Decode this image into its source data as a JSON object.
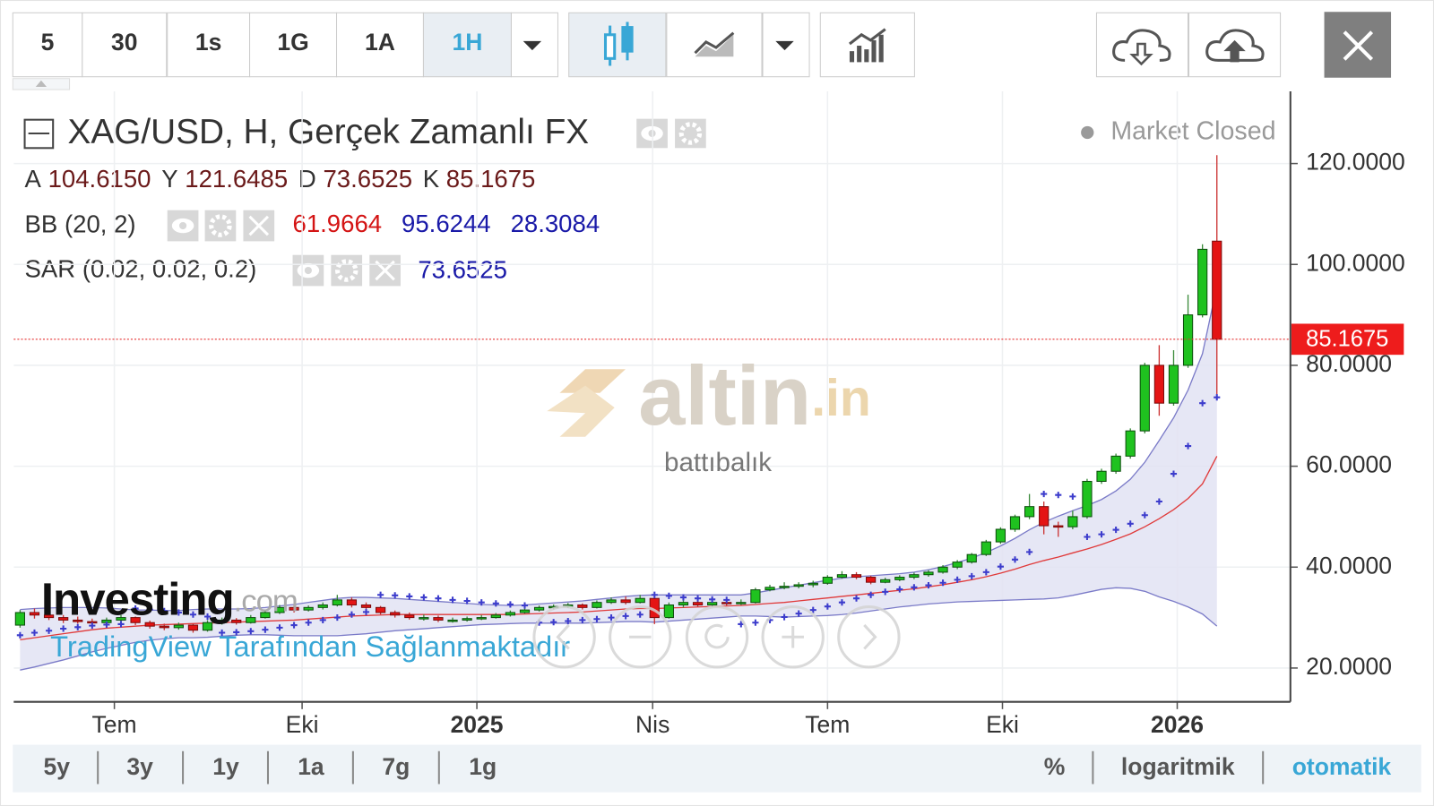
{
  "toolbar": {
    "intervals": [
      "5",
      "30",
      "1s",
      "1G",
      "1A",
      "1H"
    ]
  },
  "footer": {
    "ranges": [
      "5y",
      "3y",
      "1y",
      "1a",
      "7g",
      "1g"
    ],
    "scales": [
      "%",
      "logaritmik",
      "otomatik"
    ]
  },
  "watermark": {
    "logo": "altin",
    "logo_suffix": ".in",
    "caption": "battıbalık"
  },
  "branding": {
    "name": "Investing",
    "suffix": ".com",
    "provider": "TradingView Tarafından Sağlanmaktadır"
  },
  "chart_data": {
    "type": "candlestick",
    "title": "XAG/USD, H, Gerçek Zamanlı FX",
    "status": "Market Closed",
    "ohlc_legend": [
      {
        "label": "A",
        "value": "104.6150"
      },
      {
        "label": "Y",
        "value": "121.6485"
      },
      {
        "label": "D",
        "value": "73.6525"
      },
      {
        "label": "K",
        "value": "85.1675"
      }
    ],
    "up_color": "#1fc21f",
    "down_color": "#e41414",
    "open": [
      28.5,
      31.0,
      30.5,
      30.0,
      29.5,
      29.2,
      29.0,
      29.5,
      30.0,
      29.0,
      28.3,
      28.0,
      28.5,
      27.5,
      29.0,
      29.5,
      29.0,
      30.0,
      31.0,
      32.0,
      31.5,
      32.0,
      32.5,
      33.5,
      32.5,
      32.0,
      31.0,
      30.5,
      29.9,
      30.0,
      29.4,
      29.5,
      29.8,
      30.0,
      30.5,
      31.0,
      31.5,
      32.0,
      32.2,
      32.5,
      32.0,
      33.0,
      33.5,
      33.0,
      33.8,
      30.0,
      32.5,
      33.0,
      32.5,
      33.0,
      32.8,
      33.0,
      35.5,
      36.0,
      36.2,
      36.5,
      36.8,
      38.0,
      38.5,
      38.0,
      37.0,
      37.5,
      38.0,
      38.5,
      39.0,
      40.0,
      41.0,
      42.5,
      45.0,
      47.5,
      50.0,
      52.0,
      48.2,
      48.0,
      50.0,
      57.0,
      59.0,
      62.0,
      67.0,
      80.0,
      72.5,
      80.0,
      90.0,
      104.615
    ],
    "high": [
      31.5,
      31.8,
      31.0,
      30.5,
      30.2,
      29.8,
      30.0,
      30.5,
      30.2,
      29.4,
      28.8,
      29.0,
      28.8,
      29.5,
      30.0,
      29.9,
      30.5,
      31.4,
      32.5,
      32.6,
      32.4,
      33.0,
      34.5,
      34.0,
      33.0,
      32.3,
      31.4,
      31.0,
      30.6,
      30.4,
      30.0,
      30.2,
      30.5,
      30.9,
      31.4,
      31.9,
      32.4,
      32.6,
      32.9,
      32.8,
      33.4,
      34.0,
      34.2,
      34.5,
      34.2,
      33.0,
      33.5,
      33.6,
      33.4,
      33.6,
      33.6,
      35.9,
      36.5,
      37.0,
      37.0,
      37.3,
      38.4,
      39.2,
      39.0,
      38.3,
      37.9,
      38.4,
      38.9,
      39.4,
      40.4,
      41.4,
      42.8,
      45.4,
      47.9,
      50.4,
      54.5,
      53.0,
      49.0,
      51.2,
      57.5,
      59.5,
      62.5,
      67.5,
      80.5,
      84.0,
      83.0,
      94.0,
      104.0,
      121.6485
    ],
    "low": [
      28.0,
      29.8,
      29.5,
      28.9,
      28.8,
      28.5,
      28.7,
      29.0,
      28.5,
      27.8,
      27.5,
      27.6,
      27.0,
      27.2,
      28.6,
      28.6,
      28.8,
      29.8,
      30.7,
      31.0,
      31.2,
      31.6,
      32.2,
      32.0,
      31.5,
      30.6,
      30.0,
      29.6,
      29.4,
      29.1,
      29.0,
      29.2,
      29.5,
      29.8,
      30.2,
      30.8,
      31.2,
      31.6,
      31.9,
      31.6,
      31.8,
      32.7,
      32.6,
      32.8,
      28.7,
      29.8,
      32.0,
      32.1,
      32.2,
      32.4,
      32.5,
      32.8,
      35.2,
      35.6,
      35.8,
      36.0,
      36.5,
      37.7,
      37.6,
      36.6,
      36.8,
      37.2,
      37.6,
      38.1,
      38.7,
      39.6,
      40.7,
      42.2,
      44.6,
      47.0,
      49.5,
      46.5,
      46.0,
      47.5,
      49.6,
      56.5,
      58.5,
      61.5,
      66.5,
      70.0,
      72.0,
      79.5,
      89.5,
      73.6525
    ],
    "close": [
      31.0,
      30.5,
      30.0,
      29.5,
      29.2,
      29.0,
      29.5,
      30.0,
      29.0,
      28.3,
      28.0,
      28.5,
      27.5,
      29.0,
      29.5,
      29.0,
      30.0,
      31.0,
      32.0,
      31.5,
      32.0,
      32.5,
      33.5,
      32.5,
      32.0,
      31.0,
      30.5,
      30.0,
      30.0,
      29.5,
      29.5,
      29.8,
      30.0,
      30.5,
      31.0,
      31.5,
      32.0,
      32.2,
      32.5,
      32.0,
      33.0,
      33.5,
      33.0,
      33.8,
      30.0,
      32.5,
      33.0,
      32.5,
      33.0,
      32.8,
      33.0,
      35.5,
      36.0,
      36.2,
      36.5,
      36.8,
      38.0,
      38.5,
      38.0,
      37.0,
      37.5,
      38.0,
      38.5,
      39.0,
      40.0,
      41.0,
      42.5,
      45.0,
      47.5,
      50.0,
      52.0,
      48.2,
      48.0,
      50.0,
      57.0,
      59.0,
      62.0,
      67.0,
      80.0,
      72.5,
      80.0,
      90.0,
      103.0,
      85.1675
    ],
    "indicators": [
      {
        "name": "BB (20, 2)",
        "fill": "#e2e3f3",
        "lines": [
          {
            "color": "#e03a3a",
            "values": [
              25.6,
              26.0,
              26.4,
              26.8,
              27.2,
              27.6,
              27.9,
              28.1,
              28.3,
              28.5,
              28.6,
              28.7,
              28.8,
              28.9,
              29.0,
              29.1,
              29.2,
              29.3,
              29.4,
              29.5,
              29.7,
              29.9,
              30.1,
              30.3,
              30.4,
              30.5,
              30.6,
              30.6,
              30.6,
              30.6,
              30.6,
              30.6,
              30.6,
              30.6,
              30.6,
              30.7,
              30.8,
              30.9,
              31.0,
              31.1,
              31.3,
              31.5,
              31.7,
              31.8,
              31.8,
              31.9,
              32.0,
              32.1,
              32.2,
              32.3,
              32.4,
              32.6,
              32.8,
              33.0,
              33.3,
              33.6,
              33.9,
              34.2,
              34.5,
              34.8,
              35.1,
              35.4,
              35.7,
              36.1,
              36.5,
              37.0,
              37.5,
              38.1,
              38.8,
              39.6,
              40.5,
              41.3,
              42.0,
              42.8,
              43.6,
              44.5,
              45.5,
              46.6,
              48.0,
              49.6,
              51.4,
              53.6,
              56.5,
              61.9664
            ]
          },
          {
            "color": "#7b7bc8",
            "values": [
              31.6,
              31.8,
              31.9,
              32.0,
              32.0,
              32.0,
              31.9,
              31.7,
              31.5,
              31.5,
              31.4,
              31.4,
              31.6,
              31.7,
              31.7,
              31.7,
              31.8,
              32.0,
              32.3,
              32.6,
              33.0,
              33.4,
              33.8,
              34.0,
              34.0,
              33.9,
              33.8,
              33.6,
              33.4,
              33.2,
              33.0,
              32.8,
              32.6,
              32.5,
              32.4,
              32.5,
              32.7,
              32.9,
              33.1,
              33.3,
              33.6,
              33.9,
              34.2,
              34.4,
              34.5,
              34.5,
              34.5,
              34.5,
              34.5,
              34.5,
              34.5,
              34.9,
              35.4,
              35.9,
              36.4,
              36.9,
              37.4,
              37.8,
              38.1,
              38.3,
              38.5,
              38.7,
              39.0,
              39.5,
              40.1,
              40.9,
              41.8,
              42.9,
              44.2,
              45.7,
              47.4,
              48.9,
              50.1,
              51.2,
              52.2,
              53.4,
              55.1,
              57.4,
              60.8,
              65.1,
              69.6,
              75.1,
              82.3,
              95.6244
            ]
          },
          {
            "color": "#7b7bc8",
            "values": [
              19.6,
              20.2,
              20.9,
              21.6,
              22.4,
              23.2,
              23.9,
              24.5,
              25.1,
              25.5,
              25.8,
              26.0,
              26.0,
              26.1,
              26.3,
              26.5,
              26.6,
              26.6,
              26.5,
              26.4,
              26.4,
              26.4,
              26.4,
              26.6,
              26.8,
              27.1,
              27.4,
              27.6,
              27.8,
              28.0,
              28.2,
              28.4,
              28.6,
              28.7,
              28.8,
              28.9,
              28.9,
              28.9,
              28.9,
              28.9,
              29.0,
              29.1,
              29.2,
              29.2,
              29.1,
              29.3,
              29.5,
              29.7,
              29.9,
              30.1,
              30.3,
              30.3,
              30.2,
              30.1,
              30.2,
              30.3,
              30.4,
              30.6,
              30.9,
              31.3,
              31.7,
              32.1,
              32.4,
              32.7,
              32.9,
              33.1,
              33.2,
              33.3,
              33.4,
              33.5,
              33.6,
              33.7,
              33.9,
              34.4,
              35.0,
              35.6,
              35.9,
              35.8,
              35.2,
              34.1,
              33.2,
              32.1,
              30.7,
              28.3084
            ]
          }
        ]
      },
      {
        "name": "SAR (0.02, 0.02, 0.2)",
        "color": "#3c3ccc",
        "values": [
          26.5,
          27.0,
          27.4,
          27.8,
          28.1,
          28.4,
          28.6,
          28.7,
          31.8,
          31.6,
          31.3,
          31.0,
          30.6,
          30.2,
          27.0,
          27.1,
          27.3,
          27.6,
          28.0,
          28.5,
          29.0,
          29.5,
          30.0,
          30.6,
          31.1,
          34.5,
          34.4,
          34.2,
          34.0,
          33.8,
          33.5,
          33.3,
          33.0,
          32.8,
          32.6,
          32.4,
          29.0,
          29.1,
          29.3,
          29.5,
          29.7,
          30.0,
          30.3,
          30.6,
          34.5,
          34.3,
          34.0,
          33.8,
          33.6,
          33.5,
          28.7,
          29.0,
          29.5,
          30.1,
          30.8,
          31.5,
          32.2,
          33.0,
          33.8,
          34.5,
          35.1,
          35.6,
          36.0,
          36.4,
          36.9,
          37.5,
          38.2,
          39.0,
          40.1,
          41.5,
          43.0,
          54.5,
          54.3,
          54.0,
          46.0,
          46.5,
          47.4,
          48.6,
          50.3,
          53.0,
          58.5,
          64.0,
          72.5,
          73.6525
        ]
      }
    ],
    "xlim": [
      -0.44,
      88.1
    ],
    "xticks": [
      {
        "value": 6.54,
        "label": "Tem"
      },
      {
        "value": 19.56,
        "label": "Eki"
      },
      {
        "value": 31.68,
        "label": "2025"
      },
      {
        "value": 43.87,
        "label": "Nis"
      },
      {
        "value": 56.0,
        "label": "Tem"
      },
      {
        "value": 68.13,
        "label": "Eki"
      },
      {
        "value": 80.25,
        "label": "2026"
      }
    ],
    "ylim": [
      13.3,
      134.3
    ],
    "yticks": [
      {
        "value": 20,
        "label": "20.0000"
      },
      {
        "value": 40,
        "label": "40.0000"
      },
      {
        "value": 60,
        "label": "60.0000"
      },
      {
        "value": 80,
        "label": "80.0000"
      },
      {
        "value": 100,
        "label": "100.0000"
      },
      {
        "value": 120,
        "label": "120.0000"
      }
    ],
    "grid": true
  }
}
